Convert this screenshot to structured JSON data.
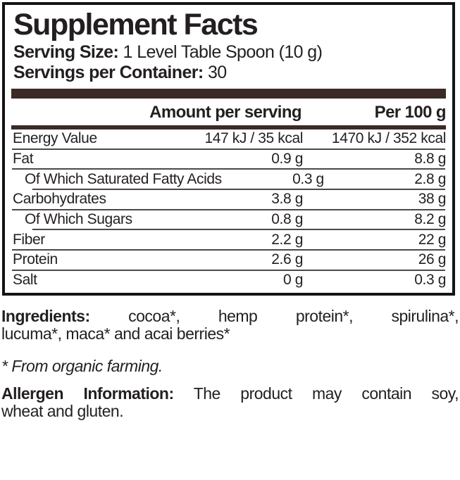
{
  "panel": {
    "title": "Supplement Facts",
    "serving_size_label": "Serving Size:",
    "serving_size_value": " 1 Level Table Spoon (10 g)",
    "servings_label": "Servings per Container:",
    "servings_value": " 30",
    "columns": {
      "amount": "Amount per serving",
      "per100": "Per 100 g"
    },
    "rows": [
      {
        "name": "Energy Value",
        "amount": "147 kJ / 35 kcal",
        "per100": "1470 kJ / 352 kcal",
        "indent": false
      },
      {
        "name": "Fat",
        "amount": "0.9 g",
        "per100": "8.8 g",
        "indent": false
      },
      {
        "name": "Of Which Saturated Fatty Acids",
        "amount": "0.3 g",
        "per100": "2.8 g",
        "indent": true
      },
      {
        "name": "Carbohydrates",
        "amount": "3.8 g",
        "per100": "38 g",
        "indent": false
      },
      {
        "name": "Of Which Sugars",
        "amount": "0.8 g",
        "per100": "8.2 g",
        "indent": true
      },
      {
        "name": "Fiber",
        "amount": "2.2 g",
        "per100": "22 g",
        "indent": false
      },
      {
        "name": "Protein",
        "amount": "2.6 g",
        "per100": "26 g",
        "indent": false
      },
      {
        "name": "Salt",
        "amount": "0 g",
        "per100": "0.3 g",
        "indent": false
      }
    ]
  },
  "footer": {
    "ingredients_label": "Ingredients:",
    "ingredients_line1_rest": " cocoa*, hemp protein*, spirulina*,",
    "ingredients_line2": "lucuma*, maca* and acai berries*",
    "organic_note": "* From organic farming.",
    "allergen_label": "Allergen Information:",
    "allergen_line1_rest": " The product may contain soy,",
    "allergen_line2": "wheat and gluten."
  },
  "colors": {
    "bar_brown": "#3b2a27",
    "text": "#231f20",
    "separator": "#4c4846"
  }
}
